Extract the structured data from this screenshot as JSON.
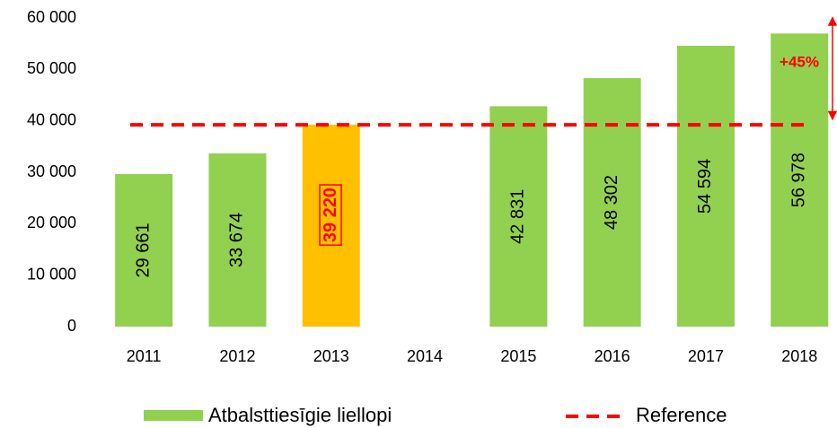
{
  "chart_data": {
    "type": "bar",
    "categories": [
      "2011",
      "2012",
      "2013",
      "2014",
      "2015",
      "2016",
      "2017",
      "2018"
    ],
    "series": [
      {
        "name": "Atbalsttiesīgie liellopi",
        "color": "#92d050",
        "values": [
          29661,
          33674,
          39220,
          null,
          42831,
          48302,
          54594,
          56978
        ],
        "value_labels": [
          "29 661",
          "33 674",
          "39 220",
          null,
          "42 831",
          "48 302",
          "54 594",
          "56 978"
        ]
      }
    ],
    "highlight": {
      "category": "2013",
      "color": "#ffc000",
      "label_color": "#ff0000"
    },
    "reference": {
      "name": "Reference",
      "value": 39220,
      "color": "#ff0000"
    },
    "annotation": "+45%",
    "ylim": [
      0,
      60000
    ],
    "yticks": [
      0,
      {
        "value": 10000,
        "label": "10 000"
      },
      {
        "value": 20000,
        "label": "20 000"
      },
      {
        "value": 30000,
        "label": "30 000"
      },
      {
        "value": 40000,
        "label": "40 000"
      },
      {
        "value": 50000,
        "label": "50 000"
      },
      {
        "value": 60000,
        "label": "60 000"
      }
    ],
    "grid": false,
    "legend": "bottom"
  }
}
